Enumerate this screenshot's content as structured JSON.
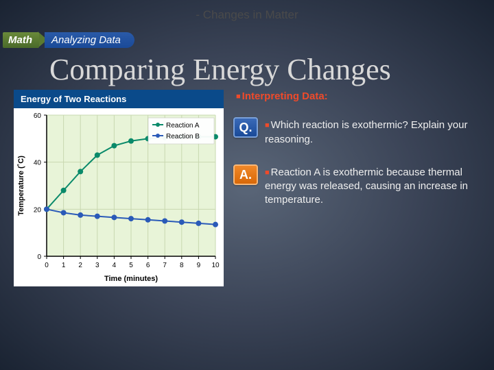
{
  "header_label": "- Changes in Matter",
  "badge": {
    "math": "Math",
    "analyzing": "Analyzing Data"
  },
  "title": "Comparing Energy Changes",
  "subhead": "Interpreting Data:",
  "question": {
    "icon": "Q.",
    "text": "Which reaction is exothermic? Explain your reasoning."
  },
  "answer": {
    "icon": "A.",
    "text": "Reaction A is exothermic because thermal energy was released, causing an increase in temperature."
  },
  "chart": {
    "title": "Energy of Two Reactions",
    "xlabel": "Time (minutes)",
    "ylabel": "Temperature (˚C)",
    "xlim": [
      0,
      10
    ],
    "ylim": [
      0,
      60
    ],
    "xticks": [
      0,
      1,
      2,
      3,
      4,
      5,
      6,
      7,
      8,
      9,
      10
    ],
    "yticks": [
      0,
      20,
      40,
      60
    ],
    "background_color": "#e8f4d8",
    "grid_color": "#c8d8b0",
    "axis_color": "#000000",
    "label_fontsize": 11,
    "tick_fontsize": 10,
    "legend": [
      {
        "label": "Reaction A",
        "color": "#0a8a6a"
      },
      {
        "label": "Reaction B",
        "color": "#2a5ab8"
      }
    ],
    "series": {
      "reaction_a": {
        "color": "#0a8a6a",
        "marker": "circle",
        "marker_size": 4,
        "line_width": 2,
        "points": [
          [
            0,
            20
          ],
          [
            1,
            28
          ],
          [
            2,
            36
          ],
          [
            3,
            43
          ],
          [
            4,
            47
          ],
          [
            5,
            49
          ],
          [
            6,
            50
          ],
          [
            7,
            50.5
          ],
          [
            8,
            50.7
          ],
          [
            9,
            50.8
          ],
          [
            10,
            50.8
          ]
        ]
      },
      "reaction_b": {
        "color": "#2a5ab8",
        "marker": "circle",
        "marker_size": 4,
        "line_width": 2,
        "points": [
          [
            0,
            20
          ],
          [
            1,
            18.5
          ],
          [
            2,
            17.5
          ],
          [
            3,
            17
          ],
          [
            4,
            16.5
          ],
          [
            5,
            16
          ],
          [
            6,
            15.5
          ],
          [
            7,
            15
          ],
          [
            8,
            14.5
          ],
          [
            9,
            14
          ],
          [
            10,
            13.5
          ]
        ]
      }
    }
  }
}
